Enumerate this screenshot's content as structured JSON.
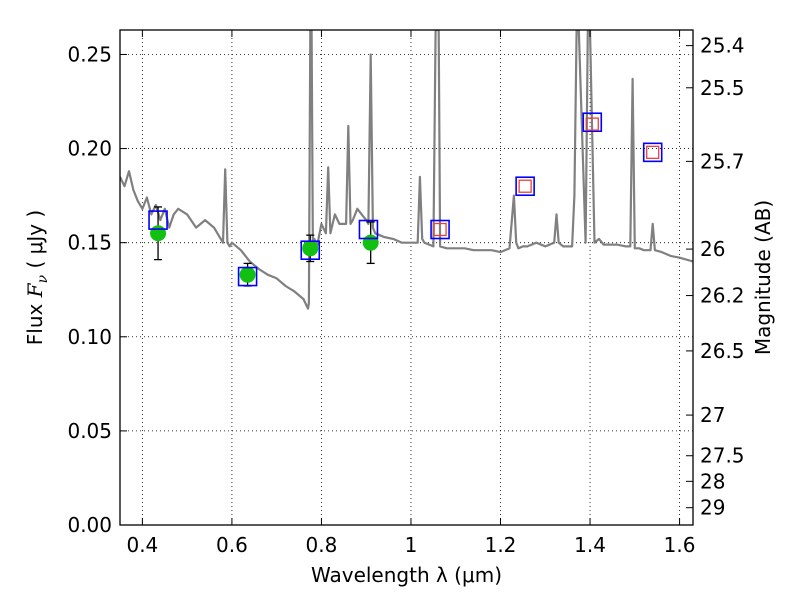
{
  "chart_data": {
    "type": "scatter",
    "xlabel": "Wavelength  λ (μm)",
    "ylabel": "Flux  F_ν  ( μJy )",
    "y2label": "Magnitude (AB)",
    "xlim": [
      0.35,
      1.63
    ],
    "ylim": [
      0.0,
      0.263
    ],
    "grid": true,
    "x_ticks": [
      0.4,
      0.6,
      0.8,
      1.0,
      1.2,
      1.4,
      1.6
    ],
    "x_tick_labels": [
      "0.4",
      "0.6",
      "0.8",
      "1",
      "1.2",
      "1.4",
      "1.6"
    ],
    "y_ticks": [
      0.0,
      0.05,
      0.1,
      0.15,
      0.2,
      0.25
    ],
    "y_tick_labels": [
      "0.00",
      "0.05",
      "0.10",
      "0.15",
      "0.20",
      "0.25"
    ],
    "y2_ticks": [
      {
        "label": "25.4",
        "flux": 0.2547
      },
      {
        "label": "25.5",
        "flux": 0.2323
      },
      {
        "label": "25.7",
        "flux": 0.1932
      },
      {
        "label": "26",
        "flux": 0.1466
      },
      {
        "label": "26.2",
        "flux": 0.1219
      },
      {
        "label": "26.5",
        "flux": 0.0925
      },
      {
        "label": "27",
        "flux": 0.0584
      },
      {
        "label": "27.5",
        "flux": 0.0368
      },
      {
        "label": "28",
        "flux": 0.0232
      },
      {
        "label": "29",
        "flux": 0.0092
      }
    ],
    "series": [
      {
        "role": "model_spectrum",
        "style": "line",
        "color": "#808080",
        "x": [
          0.35,
          0.36,
          0.37,
          0.38,
          0.39,
          0.4,
          0.41,
          0.42,
          0.43,
          0.44,
          0.45,
          0.46,
          0.47,
          0.48,
          0.5,
          0.52,
          0.54,
          0.56,
          0.58,
          0.585,
          0.59,
          0.595,
          0.6,
          0.62,
          0.64,
          0.66,
          0.68,
          0.7,
          0.72,
          0.74,
          0.76,
          0.77,
          0.772,
          0.775,
          0.778,
          0.781,
          0.784,
          0.79,
          0.8,
          0.81,
          0.815,
          0.82,
          0.83,
          0.84,
          0.855,
          0.86,
          0.865,
          0.87,
          0.88,
          0.89,
          0.9,
          0.905,
          0.91,
          0.915,
          0.92,
          0.94,
          0.96,
          0.98,
          1.0,
          1.015,
          1.02,
          1.025,
          1.03,
          1.05,
          1.055,
          1.058,
          1.062,
          1.065,
          1.08,
          1.1,
          1.12,
          1.14,
          1.16,
          1.18,
          1.2,
          1.22,
          1.23,
          1.235,
          1.24,
          1.25,
          1.26,
          1.28,
          1.3,
          1.32,
          1.325,
          1.33,
          1.34,
          1.36,
          1.365,
          1.37,
          1.375,
          1.39,
          1.395,
          1.4,
          1.41,
          1.42,
          1.43,
          1.44,
          1.46,
          1.48,
          1.49,
          1.495,
          1.5,
          1.51,
          1.52,
          1.535,
          1.54,
          1.545,
          1.56,
          1.58,
          1.6,
          1.63
        ],
        "y": [
          0.185,
          0.18,
          0.188,
          0.178,
          0.172,
          0.168,
          0.174,
          0.165,
          0.17,
          0.162,
          0.168,
          0.158,
          0.165,
          0.168,
          0.165,
          0.158,
          0.162,
          0.158,
          0.15,
          0.189,
          0.15,
          0.148,
          0.15,
          0.146,
          0.14,
          0.136,
          0.133,
          0.131,
          0.127,
          0.124,
          0.12,
          0.115,
          0.118,
          0.263,
          0.263,
          0.145,
          0.152,
          0.148,
          0.16,
          0.155,
          0.19,
          0.155,
          0.165,
          0.16,
          0.16,
          0.212,
          0.16,
          0.162,
          0.168,
          0.165,
          0.162,
          0.16,
          0.25,
          0.158,
          0.155,
          0.153,
          0.152,
          0.15,
          0.15,
          0.15,
          0.185,
          0.152,
          0.15,
          0.148,
          0.263,
          0.263,
          0.263,
          0.148,
          0.147,
          0.147,
          0.147,
          0.146,
          0.146,
          0.146,
          0.145,
          0.147,
          0.175,
          0.15,
          0.147,
          0.148,
          0.148,
          0.15,
          0.148,
          0.15,
          0.165,
          0.15,
          0.148,
          0.148,
          0.175,
          0.263,
          0.263,
          0.15,
          0.263,
          0.263,
          0.15,
          0.152,
          0.149,
          0.149,
          0.149,
          0.148,
          0.148,
          0.237,
          0.147,
          0.147,
          0.146,
          0.146,
          0.16,
          0.146,
          0.145,
          0.143,
          0.142,
          0.14
        ]
      },
      {
        "role": "observed_photometry",
        "style": "circle_errorbar",
        "color": "#11c011",
        "points": [
          {
            "x": 0.435,
            "y": 0.155,
            "yerr": 0.014
          },
          {
            "x": 0.635,
            "y": 0.133,
            "yerr": 0.006
          },
          {
            "x": 0.775,
            "y": 0.147,
            "yerr": 0.007
          },
          {
            "x": 0.91,
            "y": 0.15,
            "yerr": 0.011
          }
        ]
      },
      {
        "role": "model_photometry",
        "style": "open_square",
        "color": "#0000ff",
        "points": [
          {
            "x": 0.435,
            "y": 0.162
          },
          {
            "x": 0.635,
            "y": 0.132
          },
          {
            "x": 0.775,
            "y": 0.146
          },
          {
            "x": 0.905,
            "y": 0.157
          },
          {
            "x": 1.065,
            "y": 0.157
          },
          {
            "x": 1.255,
            "y": 0.18
          },
          {
            "x": 1.405,
            "y": 0.214
          },
          {
            "x": 1.54,
            "y": 0.198
          }
        ]
      },
      {
        "role": "predicted_photometry",
        "style": "open_square_small",
        "color": "#e8413c",
        "points": [
          {
            "x": 1.065,
            "y": 0.157
          },
          {
            "x": 1.255,
            "y": 0.18
          },
          {
            "x": 1.405,
            "y": 0.213
          },
          {
            "x": 1.54,
            "y": 0.198
          }
        ]
      }
    ]
  }
}
